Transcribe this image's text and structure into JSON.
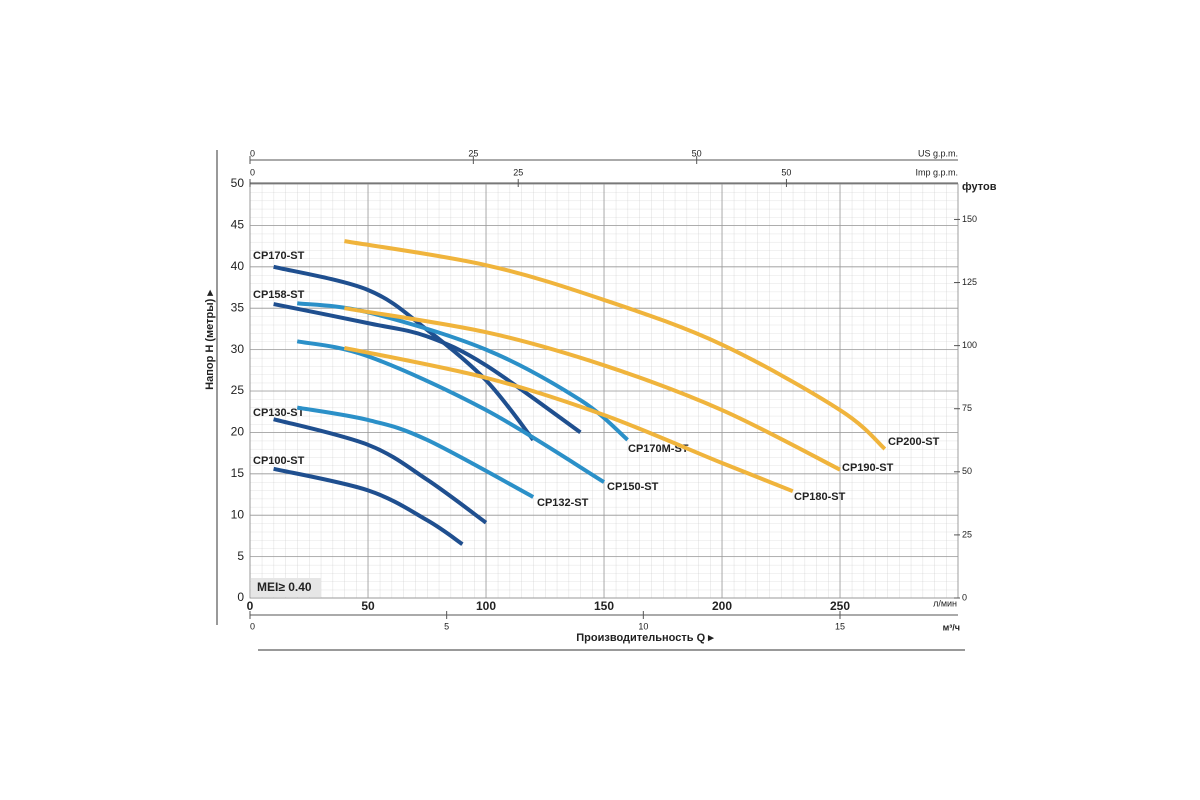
{
  "chart_data": {
    "type": "line",
    "y_label": "Напор H (метры) ▸",
    "x_label": "Производительность Q ▸",
    "x_unit": "л/мин",
    "annotation": "MEI≥ 0.40",
    "xlim": [
      0,
      300
    ],
    "xticks": [
      0,
      50,
      100,
      150,
      200,
      250
    ],
    "ylim": [
      0,
      50
    ],
    "yticks": [
      0,
      5,
      10,
      15,
      20,
      25,
      30,
      35,
      40,
      45,
      50
    ],
    "grid": true,
    "secondary_axes": {
      "us_gpm": {
        "label": "US g.p.m.",
        "lim": [
          0,
          79.25
        ],
        "ticks": [
          0,
          25,
          50
        ]
      },
      "imp_gpm": {
        "label": "Imp g.p.m.",
        "lim": [
          0,
          65.99
        ],
        "ticks": [
          0,
          25,
          50
        ]
      },
      "m3h": {
        "label": "м³/ч",
        "lim": [
          0,
          18
        ],
        "ticks": [
          0,
          5,
          10,
          15
        ]
      },
      "feet": {
        "label": "футов",
        "lim": [
          0,
          164.04
        ],
        "ticks": [
          0,
          25,
          50,
          75,
          100,
          125,
          150
        ]
      }
    },
    "series": [
      {
        "name": "CP170-ST",
        "color": "#1f4f8f",
        "x": [
          10,
          50,
          75,
          100,
          120
        ],
        "values": [
          40,
          37.2,
          32.4,
          26.3,
          19.1
        ]
      },
      {
        "name": "CP158-ST",
        "color": "#1f4f8f",
        "x": [
          10,
          50,
          75,
          100,
          140
        ],
        "values": [
          35.5,
          33.2,
          31.6,
          28.1,
          20
        ]
      },
      {
        "name": "CP130-ST",
        "color": "#1f4f8f",
        "x": [
          10,
          50,
          75,
          100
        ],
        "values": [
          21.6,
          18.5,
          14.3,
          9.1
        ]
      },
      {
        "name": "CP100-ST",
        "color": "#1f4f8f",
        "x": [
          10,
          50,
          75,
          90
        ],
        "values": [
          15.6,
          13,
          9.4,
          6.5
        ]
      },
      {
        "name": "CP170M-ST",
        "color": "#2b90c8",
        "x": [
          20,
          50,
          100,
          140,
          160
        ],
        "values": [
          35.6,
          34.5,
          30,
          23.9,
          19.1
        ]
      },
      {
        "name": "CP150-ST",
        "color": "#2b90c8",
        "x": [
          20,
          50,
          100,
          150
        ],
        "values": [
          31,
          29.2,
          22.7,
          14
        ]
      },
      {
        "name": "CP132-ST",
        "color": "#2b90c8",
        "x": [
          20,
          50,
          75,
          120
        ],
        "values": [
          23,
          21.5,
          19.1,
          12.2
        ]
      },
      {
        "name": "CP200-ST",
        "color": "#f0b43c",
        "x": [
          40,
          100,
          150,
          200,
          250,
          269
        ],
        "values": [
          43.1,
          40.2,
          36,
          30.6,
          22.7,
          18
        ]
      },
      {
        "name": "CP190-ST",
        "color": "#f0b43c",
        "x": [
          40,
          100,
          150,
          200,
          250
        ],
        "values": [
          35,
          32.1,
          28.1,
          22.7,
          15.5
        ]
      },
      {
        "name": "CP180-ST",
        "color": "#f0b43c",
        "x": [
          40,
          100,
          150,
          200,
          230
        ],
        "values": [
          30.2,
          26.6,
          22.1,
          16.3,
          12.9
        ]
      }
    ]
  }
}
